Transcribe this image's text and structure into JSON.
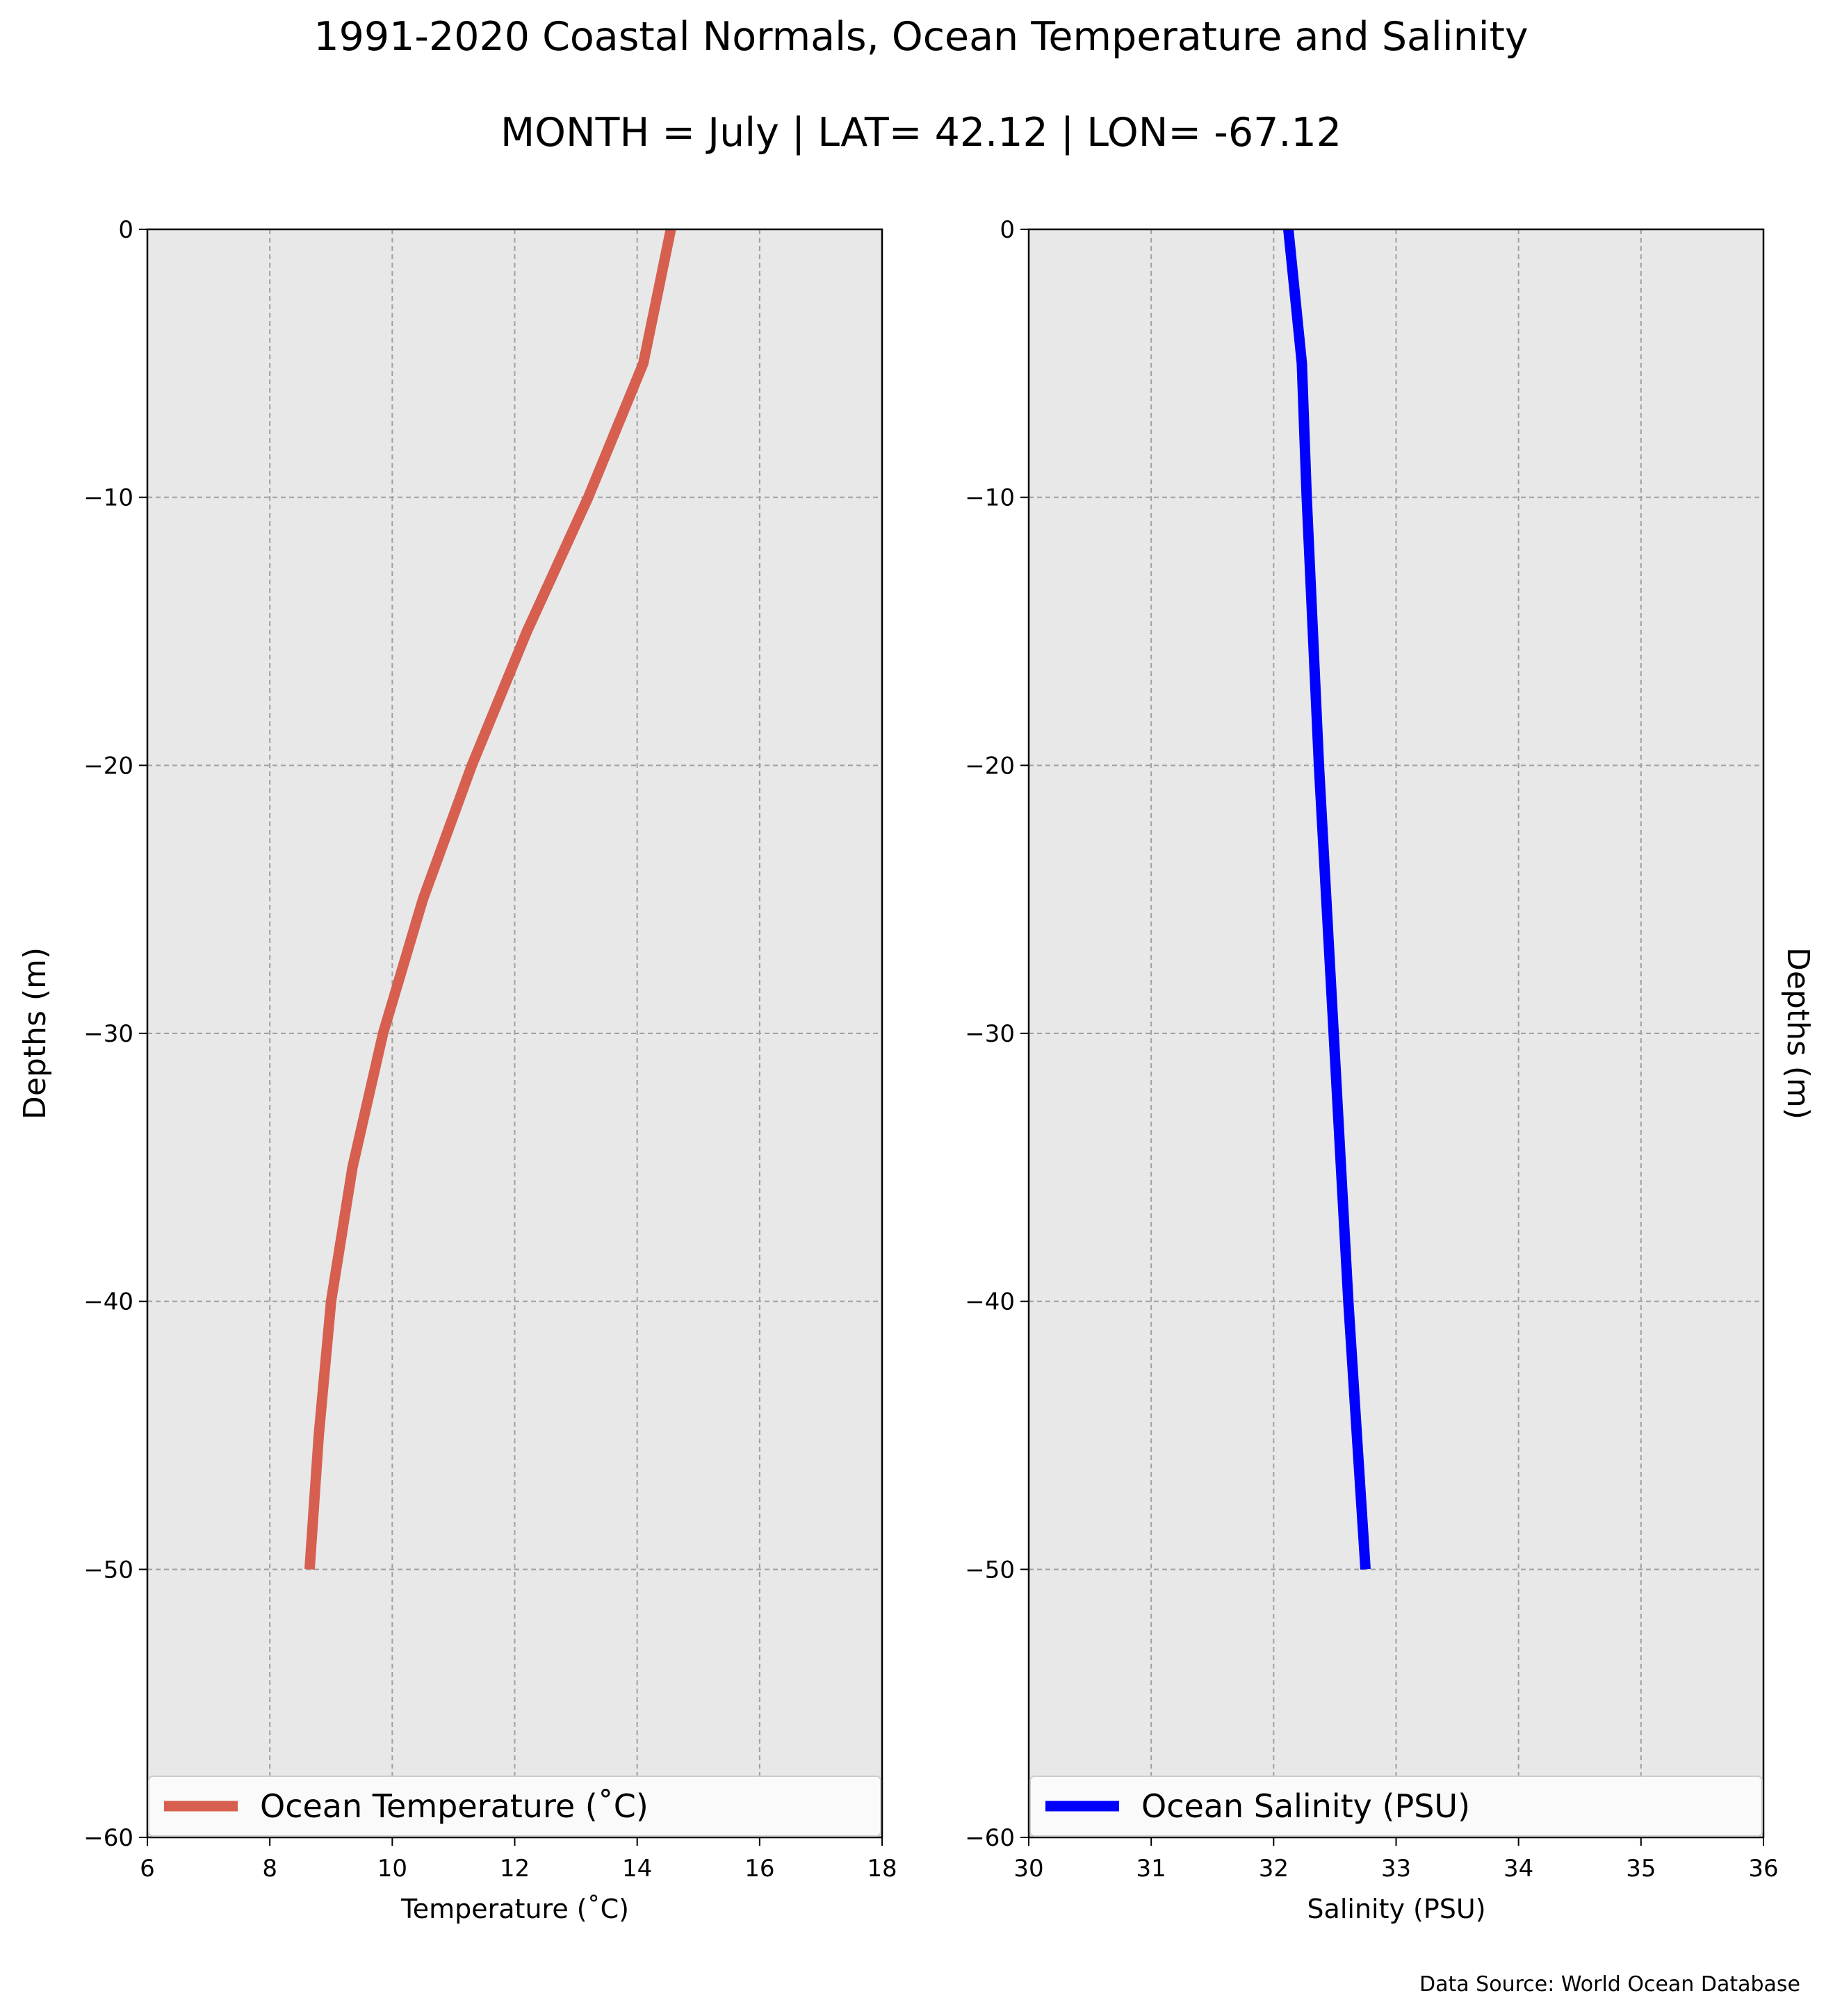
{
  "title": "1991-2020 Coastal Normals, Ocean Temperature and Salinity",
  "subtitle": "MONTH = July | LAT= 42.12 | LON= -67.12",
  "source_note": "Data Source: World Ocean Database",
  "colors": {
    "temperature": "#d65f4f",
    "salinity": "#0000ff",
    "plot_bg": "#e8e8e8",
    "grid": "#a0a0a0"
  },
  "chart_data": [
    {
      "type": "line",
      "xlabel": "Temperature ($^\\circ$C)",
      "xlabel_display": "Temperature (˚C)",
      "ylabel": "Depths (m)",
      "xlim": [
        6,
        18
      ],
      "ylim": [
        -60,
        0
      ],
      "xticks": [
        "6",
        "8",
        "10",
        "12",
        "14",
        "16",
        "18"
      ],
      "yticks": [
        "0",
        "−10",
        "−20",
        "−30",
        "−40",
        "−50",
        "−60"
      ],
      "grid": true,
      "legend": "lower-left",
      "series": [
        {
          "name": "Ocean Temperature (˚C)",
          "x": [
            14.55,
            14.1,
            13.2,
            12.2,
            11.3,
            10.5,
            9.85,
            9.35,
            9.0,
            8.8,
            8.65
          ],
          "y": [
            0,
            -5,
            -10,
            -15,
            -20,
            -25,
            -30,
            -35,
            -40,
            -45,
            -50
          ]
        }
      ]
    },
    {
      "type": "line",
      "xlabel": "Salinity (PSU)",
      "ylabel": "Depths (m)",
      "xlim": [
        30,
        36
      ],
      "ylim": [
        -60,
        0
      ],
      "xticks": [
        "30",
        "31",
        "32",
        "33",
        "34",
        "35",
        "36"
      ],
      "yticks": [
        "0",
        "−10",
        "−20",
        "−30",
        "−40",
        "−50",
        "−60"
      ],
      "grid": true,
      "legend": "lower-left",
      "series": [
        {
          "name": "Ocean Salinity (PSU)",
          "x": [
            32.12,
            32.23,
            32.27,
            32.32,
            32.37,
            32.43,
            32.49,
            32.55,
            32.61,
            32.68,
            32.75
          ],
          "y": [
            0,
            -5,
            -10,
            -15,
            -20,
            -25,
            -30,
            -35,
            -40,
            -45,
            -50
          ]
        }
      ]
    }
  ]
}
